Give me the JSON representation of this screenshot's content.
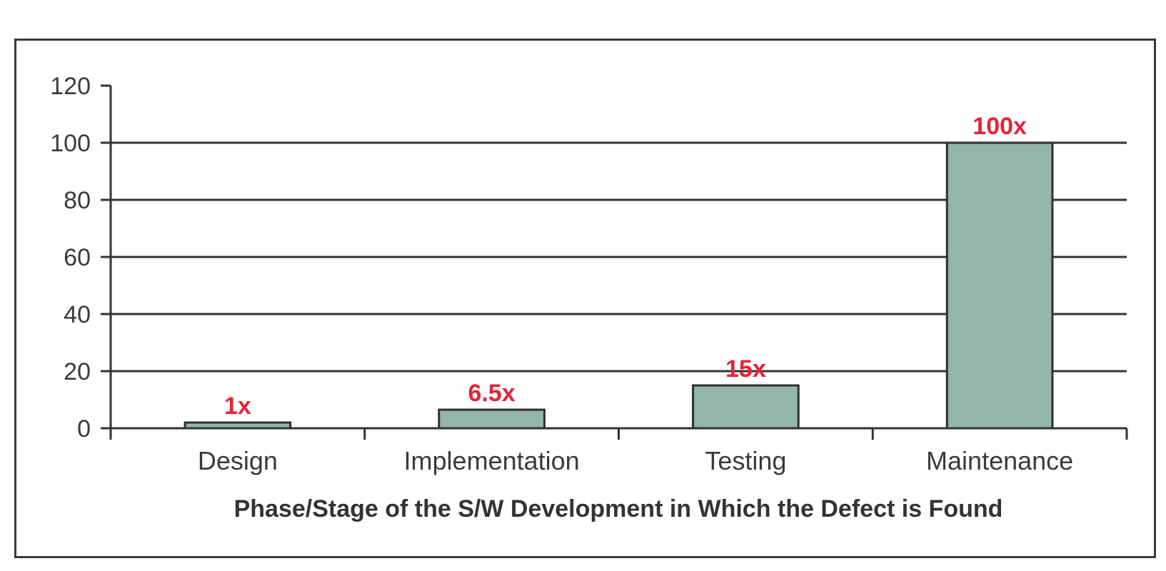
{
  "chart_data": {
    "type": "bar",
    "categories": [
      "Design",
      "Implementation",
      "Testing",
      "Maintenance"
    ],
    "values": [
      1,
      6.5,
      15,
      100
    ],
    "data_labels": [
      "1x",
      "6.5x",
      "15x",
      "100x"
    ],
    "title": "",
    "xlabel": "Phase/Stage of the S/W Development in Which the Defect is Found",
    "ylabel": "",
    "ylim": [
      0,
      120
    ],
    "yticks": [
      0,
      20,
      40,
      60,
      80,
      100,
      120
    ],
    "ytick_labels": [
      "0",
      "20",
      "40",
      "60",
      "80",
      "100",
      "120"
    ],
    "grid": true,
    "legend": "none",
    "colors": {
      "bar_fill": "#93b5ac",
      "bar_stroke": "#2f2f2f",
      "data_label": "#e3243b",
      "axis": "#333333",
      "grid": "#333333"
    }
  }
}
